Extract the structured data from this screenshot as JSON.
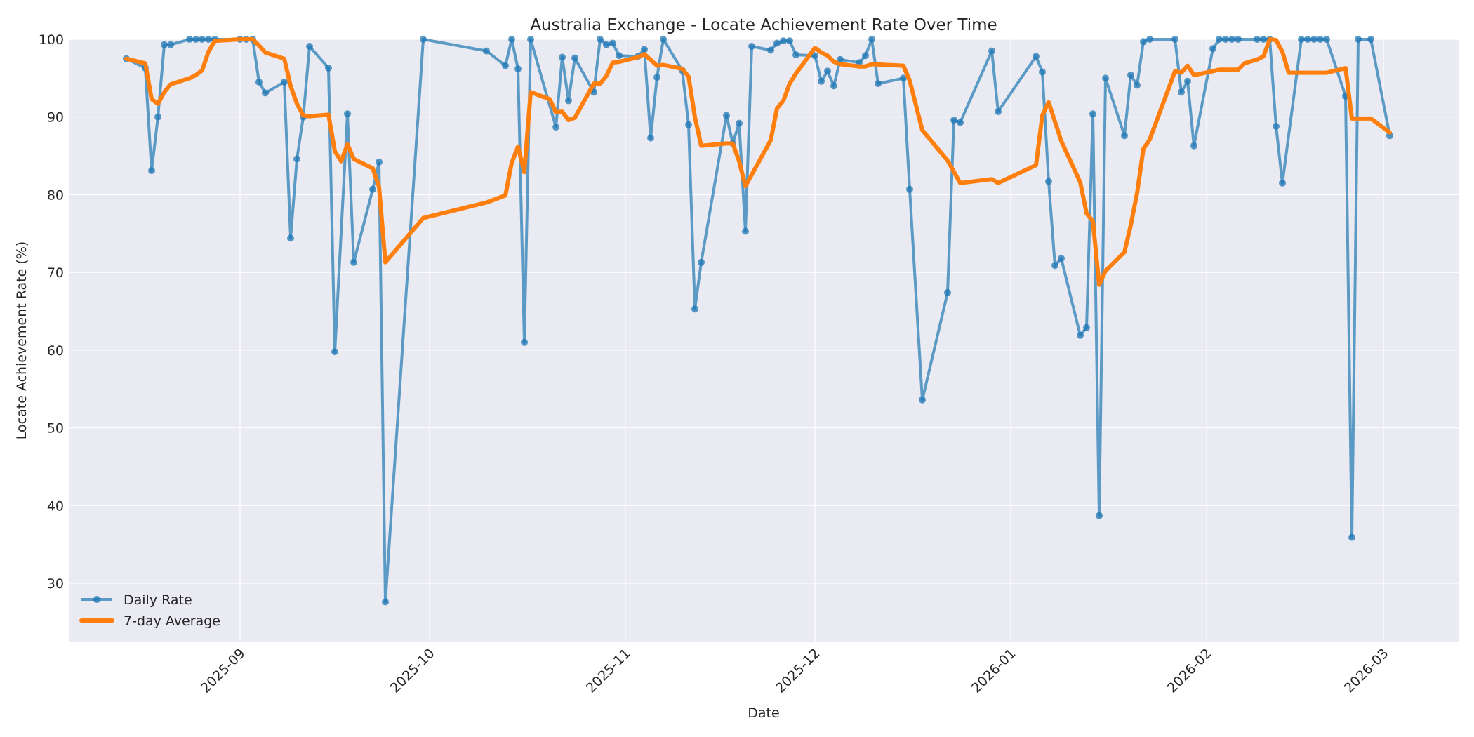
{
  "chart_data": {
    "type": "line",
    "title": "Australia Exchange - Locate Achievement Rate Over Time",
    "xlabel": "Date",
    "ylabel": "Locate Achievement Rate (%)",
    "ylim": [
      22.5,
      100
    ],
    "yticks": [
      30,
      40,
      50,
      60,
      70,
      80,
      90,
      100
    ],
    "xticks": [
      "2025-09",
      "2025-10",
      "2025-11",
      "2025-12",
      "2026-01",
      "2026-02",
      "2026-03"
    ],
    "xlim": [
      "2025-08-07",
      "2026-03-11"
    ],
    "grid": true,
    "legend_position": "lower left",
    "colors": {
      "daily": "#1f77b4",
      "avg": "#ff7f0e",
      "background": "#eaeaf2",
      "grid": "#ffffff"
    },
    "series": [
      {
        "name": "Daily Rate",
        "marker": "o",
        "points": [
          [
            "2025-08-14",
            97.5
          ],
          [
            "2025-08-17",
            96.3
          ],
          [
            "2025-08-18",
            83.1
          ],
          [
            "2025-08-19",
            90.0
          ],
          [
            "2025-08-20",
            99.3
          ],
          [
            "2025-08-21",
            99.3
          ],
          [
            "2025-08-24",
            100
          ],
          [
            "2025-08-25",
            100
          ],
          [
            "2025-08-26",
            100
          ],
          [
            "2025-08-27",
            100
          ],
          [
            "2025-08-28",
            100
          ],
          [
            "2025-09-01",
            100
          ],
          [
            "2025-09-02",
            100
          ],
          [
            "2025-09-03",
            100
          ],
          [
            "2025-09-04",
            94.5
          ],
          [
            "2025-09-05",
            93.1
          ],
          [
            "2025-09-08",
            94.5
          ],
          [
            "2025-09-09",
            74.4
          ],
          [
            "2025-09-10",
            84.6
          ],
          [
            "2025-09-11",
            90.0
          ],
          [
            "2025-09-12",
            99.1
          ],
          [
            "2025-09-15",
            96.3
          ],
          [
            "2025-09-16",
            59.8
          ],
          [
            "2025-09-18",
            90.4
          ],
          [
            "2025-09-19",
            71.3
          ],
          [
            "2025-09-22",
            80.7
          ],
          [
            "2025-09-23",
            84.2
          ],
          [
            "2025-09-24",
            27.6
          ],
          [
            "2025-09-30",
            100
          ],
          [
            "2025-10-10",
            98.5
          ],
          [
            "2025-10-13",
            96.6
          ],
          [
            "2025-10-14",
            100
          ],
          [
            "2025-10-15",
            96.2
          ],
          [
            "2025-10-16",
            61.0
          ],
          [
            "2025-10-17",
            100
          ],
          [
            "2025-10-21",
            88.7
          ],
          [
            "2025-10-22",
            97.7
          ],
          [
            "2025-10-23",
            92.1
          ],
          [
            "2025-10-24",
            97.6
          ],
          [
            "2025-10-27",
            93.2
          ],
          [
            "2025-10-28",
            100
          ],
          [
            "2025-10-29",
            99.3
          ],
          [
            "2025-10-30",
            99.5
          ],
          [
            "2025-10-31",
            97.9
          ],
          [
            "2025-11-03",
            97.8
          ],
          [
            "2025-11-04",
            98.7
          ],
          [
            "2025-11-05",
            87.3
          ],
          [
            "2025-11-06",
            95.1
          ],
          [
            "2025-11-07",
            100
          ],
          [
            "2025-11-10",
            96.0
          ],
          [
            "2025-11-11",
            89.0
          ],
          [
            "2025-11-12",
            65.3
          ],
          [
            "2025-11-13",
            71.3
          ],
          [
            "2025-11-17",
            90.2
          ],
          [
            "2025-11-18",
            86.6
          ],
          [
            "2025-11-19",
            89.2
          ],
          [
            "2025-11-20",
            75.3
          ],
          [
            "2025-11-21",
            99.1
          ],
          [
            "2025-11-24",
            98.6
          ],
          [
            "2025-11-25",
            99.5
          ],
          [
            "2025-11-26",
            99.8
          ],
          [
            "2025-11-27",
            99.8
          ],
          [
            "2025-11-28",
            98.0
          ],
          [
            "2025-12-01",
            97.9
          ],
          [
            "2025-12-02",
            94.6
          ],
          [
            "2025-12-03",
            95.9
          ],
          [
            "2025-12-04",
            94.0
          ],
          [
            "2025-12-05",
            97.4
          ],
          [
            "2025-12-08",
            97.0
          ],
          [
            "2025-12-09",
            97.9
          ],
          [
            "2025-12-10",
            100
          ],
          [
            "2025-12-11",
            94.3
          ],
          [
            "2025-12-15",
            95.0
          ],
          [
            "2025-12-16",
            80.7
          ],
          [
            "2025-12-18",
            53.6
          ],
          [
            "2025-12-22",
            67.4
          ],
          [
            "2025-12-23",
            89.6
          ],
          [
            "2025-12-24",
            89.3
          ],
          [
            "2025-12-29",
            98.5
          ],
          [
            "2025-12-30",
            90.7
          ],
          [
            "2026-01-05",
            97.8
          ],
          [
            "2026-01-06",
            95.8
          ],
          [
            "2026-01-07",
            81.7
          ],
          [
            "2026-01-08",
            70.9
          ],
          [
            "2026-01-09",
            71.8
          ],
          [
            "2026-01-12",
            61.9
          ],
          [
            "2026-01-13",
            62.9
          ],
          [
            "2026-01-14",
            90.4
          ],
          [
            "2026-01-15",
            38.7
          ],
          [
            "2026-01-16",
            95.0
          ],
          [
            "2026-01-19",
            87.6
          ],
          [
            "2026-01-20",
            95.4
          ],
          [
            "2026-01-21",
            94.1
          ],
          [
            "2026-01-22",
            99.7
          ],
          [
            "2026-01-23",
            100
          ],
          [
            "2026-01-27",
            100
          ],
          [
            "2026-01-28",
            93.2
          ],
          [
            "2026-01-29",
            94.6
          ],
          [
            "2026-01-30",
            86.3
          ],
          [
            "2026-02-02",
            98.8
          ],
          [
            "2026-02-03",
            100
          ],
          [
            "2026-02-04",
            100
          ],
          [
            "2026-02-05",
            100
          ],
          [
            "2026-02-06",
            100
          ],
          [
            "2026-02-09",
            100
          ],
          [
            "2026-02-10",
            100
          ],
          [
            "2026-02-11",
            100
          ],
          [
            "2026-02-12",
            88.8
          ],
          [
            "2026-02-13",
            81.5
          ],
          [
            "2026-02-16",
            100
          ],
          [
            "2026-02-17",
            100
          ],
          [
            "2026-02-18",
            100
          ],
          [
            "2026-02-19",
            100
          ],
          [
            "2026-02-20",
            100
          ],
          [
            "2026-02-23",
            92.7
          ],
          [
            "2026-02-24",
            35.9
          ],
          [
            "2026-02-25",
            100
          ],
          [
            "2026-02-27",
            100
          ],
          [
            "2026-03-02",
            87.6
          ]
        ]
      },
      {
        "name": "7-day Average",
        "marker": "none",
        "points": [
          [
            "2025-08-14",
            97.5
          ],
          [
            "2025-08-17",
            96.9
          ],
          [
            "2025-08-18",
            92.3
          ],
          [
            "2025-08-19",
            91.7
          ],
          [
            "2025-08-20",
            93.2
          ],
          [
            "2025-08-21",
            94.2
          ],
          [
            "2025-08-24",
            95.0
          ],
          [
            "2025-08-25",
            95.4
          ],
          [
            "2025-08-26",
            96.0
          ],
          [
            "2025-08-27",
            98.4
          ],
          [
            "2025-08-28",
            99.8
          ],
          [
            "2025-09-01",
            100
          ],
          [
            "2025-09-02",
            100
          ],
          [
            "2025-09-03",
            100
          ],
          [
            "2025-09-04",
            99.2
          ],
          [
            "2025-09-05",
            98.3
          ],
          [
            "2025-09-08",
            97.5
          ],
          [
            "2025-09-09",
            94.0
          ],
          [
            "2025-09-10",
            91.7
          ],
          [
            "2025-09-11",
            90.2
          ],
          [
            "2025-09-12",
            90.1
          ],
          [
            "2025-09-15",
            90.3
          ],
          [
            "2025-09-16",
            85.6
          ],
          [
            "2025-09-17",
            84.3
          ],
          [
            "2025-09-18",
            86.5
          ],
          [
            "2025-09-19",
            84.6
          ],
          [
            "2025-09-22",
            83.4
          ],
          [
            "2025-09-23",
            81.0
          ],
          [
            "2025-09-24",
            71.3
          ],
          [
            "2025-09-30",
            77.0
          ],
          [
            "2025-10-10",
            79.0
          ],
          [
            "2025-10-13",
            79.9
          ],
          [
            "2025-10-14",
            84.1
          ],
          [
            "2025-10-15",
            86.2
          ],
          [
            "2025-10-16",
            82.9
          ],
          [
            "2025-10-17",
            93.2
          ],
          [
            "2025-10-20",
            92.3
          ],
          [
            "2025-10-21",
            90.6
          ],
          [
            "2025-10-22",
            90.7
          ],
          [
            "2025-10-23",
            89.6
          ],
          [
            "2025-10-24",
            89.9
          ],
          [
            "2025-10-27",
            94.3
          ],
          [
            "2025-10-28",
            94.3
          ],
          [
            "2025-10-29",
            95.3
          ],
          [
            "2025-10-30",
            97.0
          ],
          [
            "2025-10-31",
            97.1
          ],
          [
            "2025-11-03",
            97.7
          ],
          [
            "2025-11-04",
            98.1
          ],
          [
            "2025-11-06",
            96.6
          ],
          [
            "2025-11-07",
            96.7
          ],
          [
            "2025-11-10",
            96.2
          ],
          [
            "2025-11-11",
            95.2
          ],
          [
            "2025-11-12",
            90.0
          ],
          [
            "2025-11-13",
            86.3
          ],
          [
            "2025-11-17",
            86.6
          ],
          [
            "2025-11-18",
            86.6
          ],
          [
            "2025-11-19",
            84.3
          ],
          [
            "2025-11-20",
            81.1
          ],
          [
            "2025-11-24",
            87.0
          ],
          [
            "2025-11-25",
            91.1
          ],
          [
            "2025-11-26",
            92.1
          ],
          [
            "2025-11-27",
            94.3
          ],
          [
            "2025-11-28",
            95.6
          ],
          [
            "2025-12-01",
            98.9
          ],
          [
            "2025-12-02",
            98.3
          ],
          [
            "2025-12-03",
            97.9
          ],
          [
            "2025-12-04",
            97.1
          ],
          [
            "2025-12-05",
            96.8
          ],
          [
            "2025-12-08",
            96.5
          ],
          [
            "2025-12-09",
            96.5
          ],
          [
            "2025-12-10",
            96.8
          ],
          [
            "2025-12-15",
            96.6
          ],
          [
            "2025-12-16",
            94.7
          ],
          [
            "2025-12-18",
            88.3
          ],
          [
            "2025-12-22",
            84.4
          ],
          [
            "2025-12-24",
            81.5
          ],
          [
            "2025-12-29",
            82.0
          ],
          [
            "2025-12-30",
            81.5
          ],
          [
            "2026-01-05",
            83.8
          ],
          [
            "2026-01-06",
            90.2
          ],
          [
            "2026-01-07",
            91.9
          ],
          [
            "2026-01-09",
            86.9
          ],
          [
            "2026-01-12",
            81.6
          ],
          [
            "2026-01-13",
            77.6
          ],
          [
            "2026-01-14",
            76.6
          ],
          [
            "2026-01-15",
            68.4
          ],
          [
            "2026-01-16",
            70.2
          ],
          [
            "2026-01-19",
            72.6
          ],
          [
            "2026-01-20",
            76.1
          ],
          [
            "2026-01-21",
            80.2
          ],
          [
            "2026-01-22",
            85.9
          ],
          [
            "2026-01-23",
            87.1
          ],
          [
            "2026-01-27",
            95.9
          ],
          [
            "2026-01-28",
            95.7
          ],
          [
            "2026-01-29",
            96.6
          ],
          [
            "2026-01-30",
            95.4
          ],
          [
            "2026-02-02",
            95.9
          ],
          [
            "2026-02-03",
            96.1
          ],
          [
            "2026-02-06",
            96.1
          ],
          [
            "2026-02-07",
            96.9
          ],
          [
            "2026-02-09",
            97.4
          ],
          [
            "2026-02-10",
            97.8
          ],
          [
            "2026-02-11",
            100
          ],
          [
            "2026-02-12",
            99.9
          ],
          [
            "2026-02-13",
            98.4
          ],
          [
            "2026-02-14",
            95.7
          ],
          [
            "2026-02-20",
            95.7
          ],
          [
            "2026-02-23",
            96.3
          ],
          [
            "2026-02-24",
            89.8
          ],
          [
            "2026-02-27",
            89.8
          ],
          [
            "2026-03-02",
            88.0
          ]
        ]
      }
    ]
  },
  "legend": {
    "daily_label": "Daily Rate",
    "avg_label": "7-day Average"
  }
}
